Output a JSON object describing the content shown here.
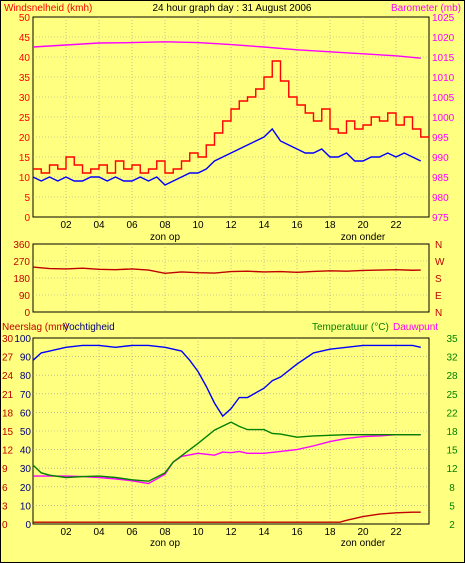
{
  "title": "24 hour graph day : 31 August 2006",
  "colors": {
    "background": "#ffff80",
    "grid": "#9a9a9a",
    "wind": "#ff0000",
    "gust": "#0000ff",
    "barometer": "#ff00ff",
    "direction": "#c00000",
    "humidity": "#0000ff",
    "temperature": "#008000",
    "dewpoint": "#ff00ff",
    "rain": "#c00000"
  },
  "chart_data": [
    {
      "type": "line",
      "id": "wind-baro",
      "labels": {
        "left": "Windsnelheid (kmh)",
        "center": "24 hour graph day : 31 August 2006",
        "right": "Barometer (mb)"
      },
      "x_ticks": [
        "02",
        "04",
        "06",
        "08",
        "10",
        "12",
        "14",
        "16",
        "18",
        "20",
        "22"
      ],
      "annotations": [
        "zon op",
        "zon onder"
      ],
      "left_ticks": [
        "0",
        "5",
        "10",
        "15",
        "20",
        "25",
        "30",
        "35",
        "40",
        "45",
        "50"
      ],
      "right_ticks": [
        "975",
        "980",
        "985",
        "990",
        "995",
        "1000",
        "1005",
        "1010",
        "1015",
        "1020",
        "1025"
      ],
      "xlim": [
        0,
        24
      ],
      "ylim_left": [
        0,
        50
      ],
      "ylim_right": [
        975,
        1025
      ],
      "series": [
        {
          "axis": "left",
          "x": [
            0,
            0.5,
            1,
            1.5,
            2,
            2.5,
            3,
            3.5,
            4,
            4.5,
            5,
            5.5,
            6,
            6.5,
            7,
            7.5,
            8,
            8.5,
            9,
            9.5,
            10,
            10.5,
            11,
            11.5,
            12,
            12.5,
            13,
            13.5,
            14,
            14.5,
            15,
            15.5,
            16,
            16.5,
            17,
            17.5,
            18,
            18.5,
            19,
            19.5,
            20,
            20.5,
            21,
            21.5,
            22,
            22.5,
            23,
            23.5
          ],
          "values": [
            12,
            11,
            13,
            12,
            15,
            13,
            11,
            12,
            13,
            11,
            14,
            12,
            13,
            11,
            12,
            14,
            11,
            12,
            14,
            16,
            15,
            18,
            21,
            24,
            27,
            29,
            30,
            32,
            35,
            39,
            34,
            30,
            28,
            26,
            24,
            27,
            22,
            21,
            24,
            22,
            23,
            25,
            24,
            26,
            23,
            25,
            22,
            20
          ]
        },
        {
          "axis": "left",
          "x": [
            0,
            0.5,
            1,
            1.5,
            2,
            2.5,
            3,
            3.5,
            4,
            4.5,
            5,
            5.5,
            6,
            6.5,
            7,
            7.5,
            8,
            8.5,
            9,
            9.5,
            10,
            10.5,
            11,
            11.5,
            12,
            12.5,
            13,
            13.5,
            14,
            14.5,
            15,
            15.5,
            16,
            16.5,
            17,
            17.5,
            18,
            18.5,
            19,
            19.5,
            20,
            20.5,
            21,
            21.5,
            22,
            22.5,
            23,
            23.5
          ],
          "values": [
            10,
            9,
            10,
            9,
            10,
            9,
            9,
            10,
            10,
            9,
            10,
            9,
            9,
            10,
            9,
            10,
            8,
            9,
            10,
            11,
            11,
            12,
            14,
            15,
            16,
            17,
            18,
            19,
            20,
            22,
            19,
            18,
            17,
            16,
            16,
            17,
            15,
            15,
            16,
            14,
            14,
            15,
            15,
            16,
            15,
            16,
            15,
            14
          ]
        },
        {
          "axis": "right",
          "x": [
            0,
            2,
            4,
            6,
            8,
            10,
            12,
            14,
            16,
            18,
            20,
            22,
            23.5
          ],
          "values": [
            1017.5,
            1018,
            1018.5,
            1018.6,
            1018.8,
            1018.6,
            1018.1,
            1017.5,
            1016.8,
            1016.3,
            1015.8,
            1015.3,
            1014.7
          ]
        }
      ]
    },
    {
      "type": "line",
      "id": "direction",
      "left_ticks": [
        "0",
        "90",
        "180",
        "270",
        "360"
      ],
      "right_ticks": [
        "N",
        "E",
        "S",
        "W",
        "N"
      ],
      "ylim": [
        0,
        360
      ],
      "series": [
        {
          "x": [
            0,
            1,
            2,
            3,
            4,
            5,
            6,
            7,
            8,
            9,
            10,
            11,
            12,
            13,
            14,
            15,
            16,
            17,
            18,
            19,
            20,
            21,
            22,
            23,
            23.5
          ],
          "values": [
            238,
            230,
            228,
            232,
            226,
            224,
            228,
            222,
            205,
            212,
            208,
            206,
            214,
            216,
            212,
            214,
            210,
            215,
            218,
            216,
            220,
            222,
            224,
            221,
            222
          ]
        }
      ]
    },
    {
      "type": "line",
      "id": "rain-hum-temp",
      "labels": {
        "rain": "Neerslag (mm)",
        "humidity": "Vochtigheid",
        "temperature": "Temperatuur (°C)",
        "dewpoint": "Dauwpunt"
      },
      "x_ticks": [
        "02",
        "04",
        "06",
        "08",
        "10",
        "12",
        "14",
        "16",
        "18",
        "20",
        "22"
      ],
      "annotations": [
        "zon op",
        "zon onder"
      ],
      "rain_ticks": [
        "0",
        "3",
        "6",
        "9",
        "12",
        "15",
        "18",
        "21",
        "24",
        "27",
        "30"
      ],
      "humidity_ticks": [
        "0",
        "10",
        "20",
        "30",
        "40",
        "50",
        "60",
        "70",
        "80",
        "90",
        "100"
      ],
      "temp_ticks": [
        "2",
        "5",
        "8",
        "12",
        "15",
        "18",
        "22",
        "25",
        "28",
        "32",
        "35"
      ],
      "humidity": {
        "x": [
          0,
          0.5,
          1,
          2,
          3,
          4,
          5,
          6,
          7,
          8,
          9,
          9.5,
          10,
          10.5,
          11,
          11.5,
          12,
          12.5,
          13,
          14,
          14.5,
          15,
          16,
          17,
          18,
          19,
          20,
          21,
          22,
          23,
          23.5
        ],
        "values": [
          88,
          92,
          93,
          95,
          96,
          96,
          95,
          96,
          96,
          95,
          93,
          88,
          82,
          74,
          65,
          58,
          62,
          68,
          68,
          73,
          77,
          79,
          86,
          92,
          94,
          95,
          96,
          96,
          96,
          96,
          95
        ]
      },
      "temperature": {
        "x": [
          0,
          0.5,
          1,
          2,
          3,
          4,
          5,
          6,
          7,
          8,
          8.5,
          9,
          10,
          11,
          12,
          12.5,
          13,
          14,
          14.5,
          15,
          16,
          17,
          18,
          19,
          20,
          21,
          22,
          23,
          23.5
        ],
        "values": [
          12.5,
          11,
          10.5,
          10,
          10.2,
          10.3,
          10,
          9.5,
          9.2,
          11,
          13,
          14,
          16,
          18.2,
          19.9,
          19,
          18.3,
          18.3,
          17.6,
          17.5,
          17,
          17.2,
          17.3,
          17.4,
          17.4,
          17.4,
          17.4,
          17.4,
          17.4
        ]
      },
      "dewpoint": {
        "x": [
          0,
          1,
          2,
          3,
          4,
          5,
          6,
          7,
          8,
          8.5,
          9,
          10,
          11,
          11.5,
          12,
          12.5,
          13,
          14,
          15,
          16,
          17,
          18,
          19,
          20,
          21,
          22,
          23,
          23.5
        ],
        "values": [
          10.3,
          10.3,
          10.3,
          10.2,
          10,
          9.7,
          9.3,
          8.7,
          10.7,
          13,
          13.9,
          14.4,
          14.1,
          14.6,
          14.5,
          14.7,
          14.4,
          14.4,
          14.7,
          15,
          15.6,
          16.3,
          16.8,
          17.1,
          17.2,
          17.4,
          17.4,
          17.4
        ]
      },
      "rain": {
        "x": [
          0,
          18.6,
          19,
          20,
          21,
          22,
          23,
          23.5
        ],
        "values": [
          0.3,
          0.3,
          0.6,
          1.2,
          1.6,
          1.8,
          1.9,
          1.9
        ]
      }
    }
  ]
}
